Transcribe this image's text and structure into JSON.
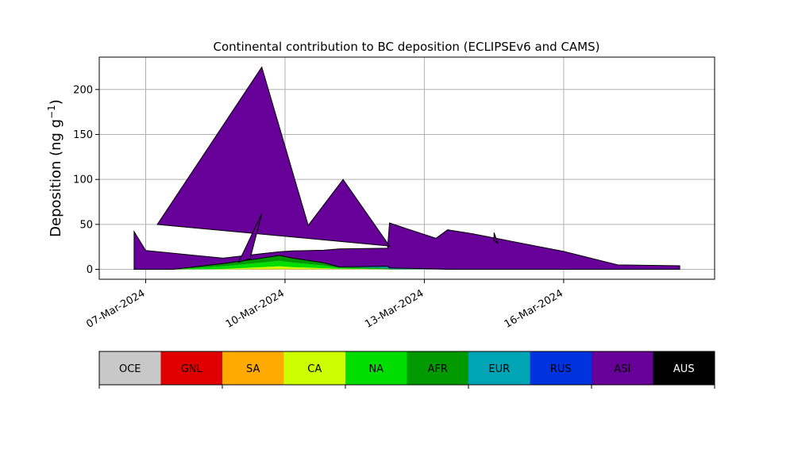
{
  "chart_data": {
    "type": "area",
    "title": "Continental contribution to BC deposition (ECLIPSEv6 and CAMS)",
    "xlabel": "",
    "ylabel": "Deposition (ng g",
    "ylabel_sup": "−1",
    "ylabel_close": ")",
    "xlim": [
      "2024-03-05T00:00",
      "2024-03-18T06:00"
    ],
    "ylim": [
      -11,
      236
    ],
    "grid": true,
    "x_ticks": [
      {
        "date": "2024-03-06T00:00",
        "label": "07-Mar-2024"
      },
      {
        "date": "2024-03-09T00:00",
        "label": "10-Mar-2024"
      },
      {
        "date": "2024-03-12T00:00",
        "label": "13-Mar-2024"
      },
      {
        "date": "2024-03-15T00:00",
        "label": "16-Mar-2024"
      }
    ],
    "y_ticks": [
      0,
      50,
      100,
      150,
      200
    ],
    "x": [
      "2024-03-05T18:00",
      "2024-03-06T00:00",
      "2024-03-06T14:00",
      "2024-03-07T16:00",
      "2024-03-08T12:00",
      "2024-03-08T21:00",
      "2024-03-09T04:00",
      "2024-03-09T20:00",
      "2024-03-10T04:00",
      "2024-03-11T05:00",
      "2024-03-11T06:00",
      "2024-03-12T06:00",
      "2024-03-12T12:00",
      "2024-03-13T00:00",
      "2024-03-14T12:00",
      "2024-03-15T00:00",
      "2024-03-16T04:00",
      "2024-03-17T12:00"
    ],
    "series": [
      {
        "name": "OCE",
        "color": "#c8c8c8",
        "values": [
          0,
          0,
          0,
          0,
          0,
          0,
          0,
          0,
          0,
          0,
          0,
          0,
          0,
          0,
          0,
          0,
          0,
          0
        ]
      },
      {
        "name": "GNL",
        "color": "#e00000",
        "values": [
          0,
          0,
          0,
          0,
          0,
          0,
          0,
          0,
          0,
          0,
          0,
          0,
          0,
          0,
          0,
          0,
          0,
          0
        ]
      },
      {
        "name": "SA",
        "color": "#ffaa00",
        "values": [
          0,
          0,
          0,
          0,
          0.5,
          0.5,
          0.5,
          0.3,
          0.2,
          0,
          0,
          0,
          0,
          0,
          0,
          0,
          0,
          0
        ]
      },
      {
        "name": "CA",
        "color": "#ccff00",
        "values": [
          0,
          0,
          0,
          0.5,
          2,
          3,
          2,
          1,
          0.5,
          0.2,
          0,
          0,
          0,
          0,
          0,
          0,
          0,
          0
        ]
      },
      {
        "name": "NA",
        "color": "#00dd00",
        "values": [
          0,
          0,
          0,
          3,
          5,
          6,
          5,
          3,
          1,
          0.3,
          0,
          0,
          0,
          0,
          0,
          0,
          0,
          0
        ]
      },
      {
        "name": "AFR",
        "color": "#009900",
        "values": [
          0,
          0,
          0,
          3,
          5,
          6,
          5,
          3,
          1,
          1,
          0.5,
          0,
          0,
          0,
          0,
          0,
          0,
          0
        ]
      },
      {
        "name": "EUR",
        "color": "#00a5b5",
        "values": [
          0,
          0,
          0,
          0,
          0,
          0,
          0,
          0,
          0,
          2,
          1,
          0.5,
          0,
          0,
          0,
          0,
          0,
          0
        ]
      },
      {
        "name": "RUS",
        "color": "#0033dd",
        "values": [
          0,
          0,
          0,
          0,
          0,
          0,
          0,
          0,
          0,
          0,
          0,
          0,
          0,
          0,
          0,
          0,
          0,
          0
        ]
      },
      {
        "name": "ASI",
        "color": "#660099",
        "values": [
          42,
          21,
          18,
          6,
          5,
          4,
          8,
          14,
          20,
          20,
          50,
          34,
          44,
          40,
          25,
          20,
          5,
          4
        ]
      },
      {
        "name": "AUS",
        "color": "#000000",
        "values": [
          0,
          0,
          0,
          0,
          0,
          0,
          0,
          0,
          0,
          0,
          0,
          0,
          0,
          0,
          0,
          0,
          0,
          0
        ]
      }
    ],
    "extra_polygons": [
      {
        "series": "ASI",
        "points": [
          [
            "2024-03-06T06:00",
            50
          ],
          [
            "2024-03-08T12:00",
            225
          ],
          [
            "2024-03-09T12:00",
            49
          ],
          [
            "2024-03-10T06:00",
            100
          ],
          [
            "2024-03-11T06:00",
            26
          ]
        ]
      },
      {
        "series": "ASI",
        "points": [
          [
            "2024-03-08T06:00",
            12
          ],
          [
            "2024-03-08T12:00",
            62
          ],
          [
            "2024-03-08T00:00",
            8
          ]
        ]
      },
      {
        "series": "ASI",
        "points": [
          [
            "2024-03-13T12:00",
            41
          ],
          [
            "2024-03-13T14:00",
            29
          ],
          [
            "2024-03-13T12:00",
            32
          ]
        ]
      }
    ]
  }
}
